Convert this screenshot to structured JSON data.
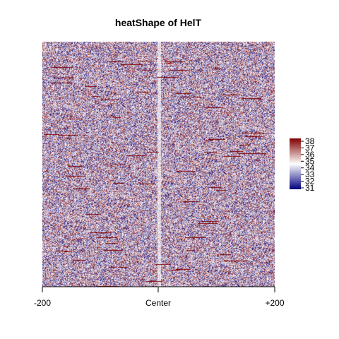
{
  "chart_data": {
    "type": "heatmap",
    "title": "heatShape of HelT",
    "xlabel": "",
    "ylabel": "",
    "x_ticks": [
      "-200",
      "Center",
      "+200"
    ],
    "x_range": [
      -200,
      200
    ],
    "color_scale": {
      "min": 31,
      "max": 38,
      "ticks": [
        "38",
        "37",
        "36",
        "35",
        "34",
        "33",
        "32",
        "31"
      ],
      "low_color": "#00007f",
      "mid_color": "#ffffff",
      "high_color": "#7f0000"
    },
    "legend_placement": "right",
    "grid": false
  }
}
